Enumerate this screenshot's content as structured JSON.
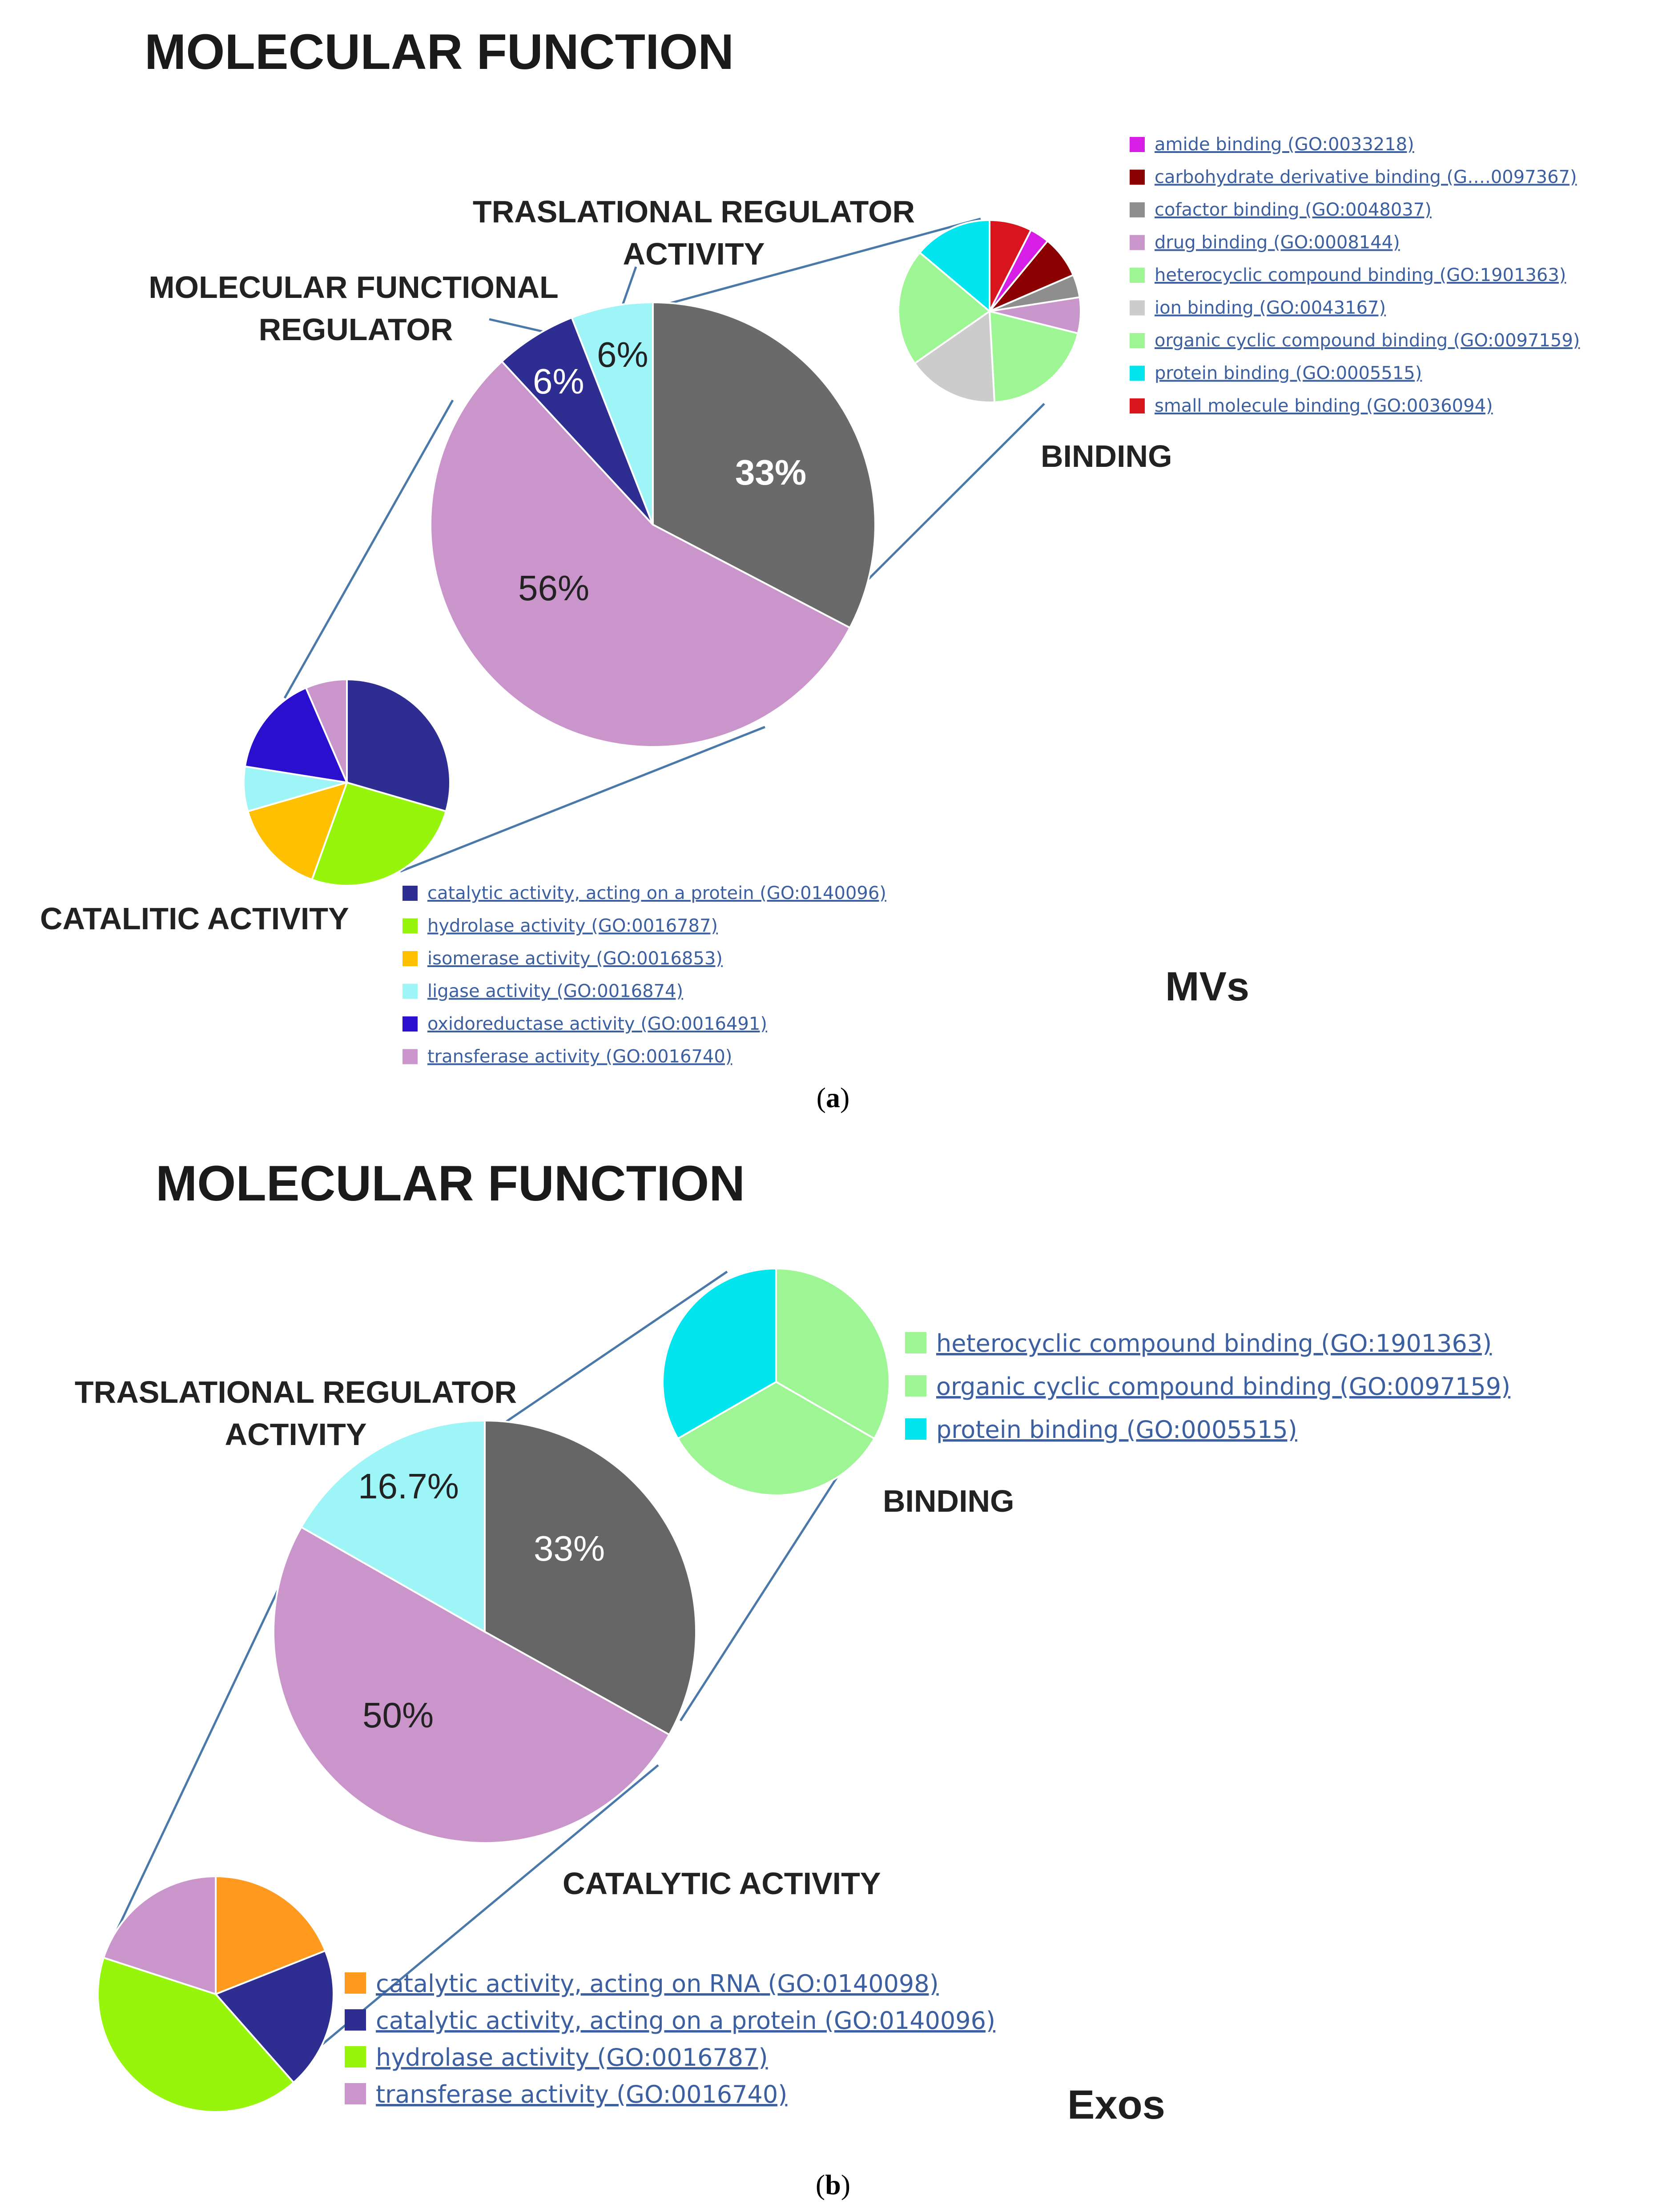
{
  "chart_data": [
    {
      "type": "pie",
      "title": "MOLECULAR FUNCTION",
      "subtitle": "MVs",
      "caption": "a",
      "main_pie": {
        "slices": [
          {
            "name": "BINDING",
            "value": 33,
            "label": "33%",
            "color": "#6a6a6a"
          },
          {
            "name": "CATALITIC ACTIVITY",
            "value": 56,
            "label": "56%",
            "color": "#c995cb"
          },
          {
            "name": "MOLECULAR FUNCTIONAL REGULATOR",
            "value": 6,
            "label": "6%",
            "color": "#2e2e92"
          },
          {
            "name": "TRASLATIONAL REGULATOR ACTIVITY",
            "value": 6,
            "label": "6%",
            "color": "#9ef5f8"
          }
        ]
      },
      "callouts": {
        "traslational_1": "TRASLATIONAL REGULATOR",
        "traslational_2": "ACTIVITY",
        "regulator_1": "MOLECULAR FUNCTIONAL",
        "regulator_2": "REGULATOR",
        "binding": "BINDING",
        "catalitic": "CATALITIC ACTIVITY"
      },
      "binding_breakdown": {
        "slices": [
          {
            "value": 6.5,
            "color": "#d8141c"
          },
          {
            "value": 3,
            "color": "#d61ee6"
          },
          {
            "value": 6.5,
            "color": "#8b0000"
          },
          {
            "value": 3.5,
            "color": "#8e8e8e"
          },
          {
            "value": 5.5,
            "color": "#c896cb"
          },
          {
            "value": 17.5,
            "color": "#9df594"
          },
          {
            "value": 14,
            "color": "#cccccc"
          },
          {
            "value": 18,
            "color": "#9df594"
          },
          {
            "value": 12,
            "color": "#00e5ee"
          }
        ],
        "legend": [
          {
            "label": "amide binding (GO:0033218)",
            "color": "#d61ee6"
          },
          {
            "label": "carbohydrate derivative binding (G….0097367)",
            "color": "#8b0000"
          },
          {
            "label": "cofactor binding (GO:0048037)",
            "color": "#8e8e8e"
          },
          {
            "label": "drug binding (GO:0008144)",
            "color": "#c896cb"
          },
          {
            "label": "heterocyclic compound binding (GO:1901363)",
            "color": "#9df594"
          },
          {
            "label": "ion binding (GO:0043167)",
            "color": "#cccccc"
          },
          {
            "label": "organic cyclic compound binding (GO:0097159)",
            "color": "#9df594"
          },
          {
            "label": "protein binding (GO:0005515)",
            "color": "#00e5ee"
          },
          {
            "label": "small molecule binding (GO:0036094)",
            "color": "#d8141c"
          }
        ]
      },
      "catalytic_breakdown": {
        "slices": [
          {
            "value": 29.5,
            "color": "#2e2e92"
          },
          {
            "value": 26,
            "color": "#96f50a"
          },
          {
            "value": 15,
            "color": "#ffc000"
          },
          {
            "value": 7,
            "color": "#9ef5f8"
          },
          {
            "value": 16,
            "color": "#2a0fcf"
          },
          {
            "value": 6.5,
            "color": "#c995cb"
          }
        ],
        "legend": [
          {
            "label": "catalytic activity, acting on a protein (GO:0140096)",
            "color": "#2e2e92"
          },
          {
            "label": "hydrolase activity (GO:0016787)",
            "color": "#96f50a"
          },
          {
            "label": "isomerase activity (GO:0016853)",
            "color": "#ffc000"
          },
          {
            "label": "ligase activity (GO:0016874)",
            "color": "#9ef5f8"
          },
          {
            "label": "oxidoreductase activity (GO:0016491)",
            "color": "#2a0fcf"
          },
          {
            "label": "transferase activity (GO:0016740)",
            "color": "#c995cb"
          }
        ]
      }
    },
    {
      "type": "pie",
      "title": "MOLECULAR FUNCTION",
      "subtitle": "Exos",
      "caption": "b",
      "main_pie": {
        "slices": [
          {
            "name": "BINDING",
            "value": 33,
            "label": "33%",
            "color": "#666666"
          },
          {
            "name": "CATALYTIC ACTIVITY",
            "value": 50,
            "label": "50%",
            "color": "#c995cb"
          },
          {
            "name": "TRASLATIONAL REGULATOR ACTIVITY",
            "value": 16.7,
            "label": "16.7%",
            "color": "#9ef5f8"
          }
        ]
      },
      "callouts": {
        "traslational_1": "TRASLATIONAL REGULATOR",
        "traslational_2": "ACTIVITY",
        "binding": "BINDING",
        "catalytic": "CATALYTIC ACTIVITY"
      },
      "binding_breakdown": {
        "slices": [
          {
            "value": 33.3,
            "color": "#9df594"
          },
          {
            "value": 33.3,
            "color": "#9df594"
          },
          {
            "value": 33.3,
            "color": "#00e5ee"
          }
        ],
        "legend": [
          {
            "label": "heterocyclic compound binding (GO:1901363)",
            "color": "#9df594"
          },
          {
            "label": "organic cyclic compound binding (GO:0097159)",
            "color": "#9df594"
          },
          {
            "label": "protein binding (GO:0005515)",
            "color": "#00e5ee"
          }
        ]
      },
      "catalytic_breakdown": {
        "slices": [
          {
            "value": 19,
            "color": "#ff9a1f"
          },
          {
            "value": 19.5,
            "color": "#2e2e92"
          },
          {
            "value": 41.5,
            "color": "#96f50a"
          },
          {
            "value": 20,
            "color": "#c995cb"
          }
        ],
        "legend": [
          {
            "label": "catalytic activity, acting on RNA (GO:0140098)",
            "color": "#ff9a1f"
          },
          {
            "label": "catalytic activity, acting on a protein (GO:0140096)",
            "color": "#2e2e92"
          },
          {
            "label": "hydrolase activity (GO:0016787)",
            "color": "#96f50a"
          },
          {
            "label": "transferase activity (GO:0016740)",
            "color": "#c995cb"
          }
        ]
      }
    }
  ]
}
